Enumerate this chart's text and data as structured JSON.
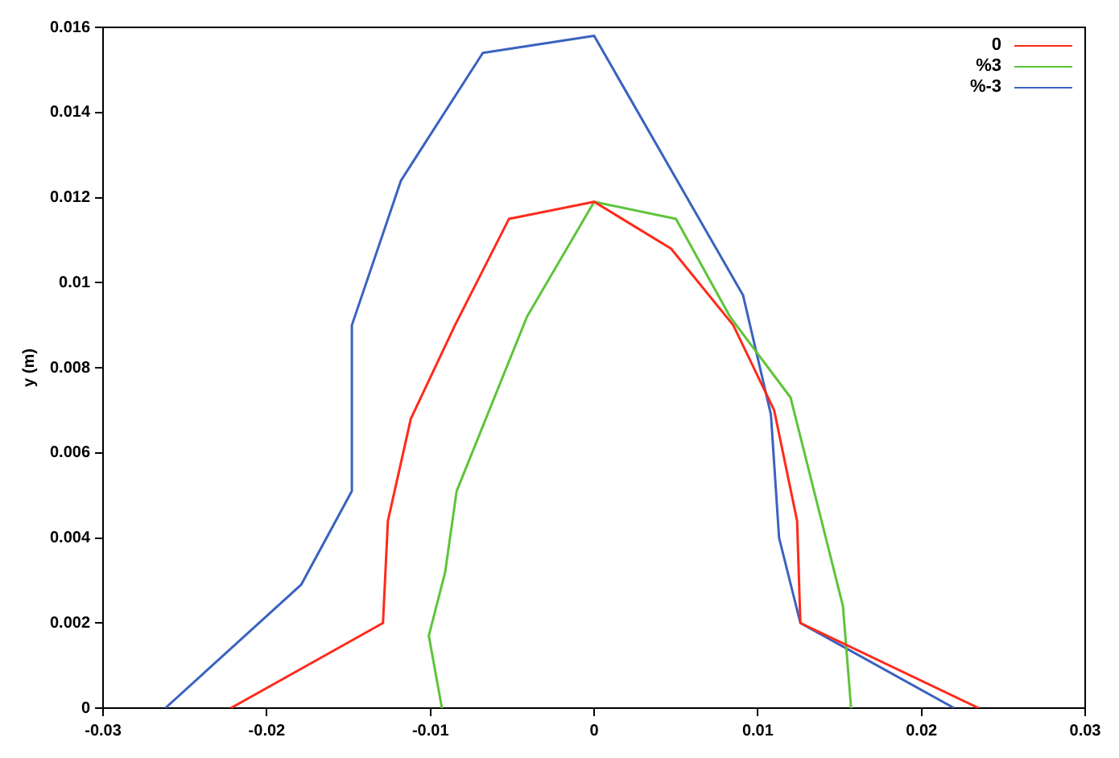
{
  "chart_data": {
    "type": "line",
    "ylabel": "y (m)",
    "xlim": [
      -0.03,
      0.03
    ],
    "xticks": [
      -0.03,
      -0.02,
      -0.01,
      0,
      0.01,
      0.02,
      0.03
    ],
    "ylim": [
      0,
      0.016
    ],
    "yticks": [
      0,
      0.002,
      0.004,
      0.006,
      0.008,
      0.01,
      0.012,
      0.014,
      0.016
    ],
    "grid": false,
    "legend": "top right",
    "marker": "none",
    "line_style": "solid",
    "series": [
      {
        "name": "0",
        "color": "#ff2a1a",
        "x": [
          -0.0222,
          -0.0129,
          -0.0126,
          -0.0112,
          -0.0085,
          -0.0052,
          0,
          0.0047,
          0.0085,
          0.011,
          0.0124,
          0.0126,
          0.0235
        ],
        "values": [
          0,
          0.002,
          0.0044,
          0.0068,
          0.009,
          0.0115,
          0.0119,
          0.0108,
          0.009,
          0.007,
          0.0044,
          0.002,
          0
        ]
      },
      {
        "name": "%3",
        "color": "#5ec43a",
        "x": [
          -0.0093,
          -0.0101,
          -0.0091,
          -0.0084,
          -0.0041,
          0,
          0.005,
          0.0083,
          0.012,
          0.0152,
          0.0157
        ],
        "values": [
          0,
          0.0017,
          0.0032,
          0.0051,
          0.0092,
          0.0119,
          0.0115,
          0.0092,
          0.0073,
          0.0024,
          0
        ]
      },
      {
        "name": "%-3",
        "color": "#3a62c0",
        "x": [
          -0.0262,
          -0.0179,
          -0.0148,
          -0.0148,
          -0.0118,
          -0.0068,
          0,
          0.0091,
          0.0108,
          0.0113,
          0.0126,
          0.022
        ],
        "values": [
          0,
          0.0029,
          0.0051,
          0.009,
          0.0124,
          0.0154,
          0.0158,
          0.0097,
          0.0069,
          0.004,
          0.002,
          0
        ]
      }
    ]
  }
}
